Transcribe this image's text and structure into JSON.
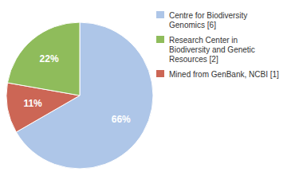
{
  "chart_data": {
    "type": "pie",
    "values": [
      66,
      11,
      22
    ],
    "value_labels": [
      "66%",
      "11%",
      "22%"
    ],
    "colors": [
      "#aec6e8",
      "#cc6655",
      "#8fbc5b"
    ],
    "data_labels": true,
    "legend": "right",
    "legend_entries": [
      {
        "name": "Centre for Biodiversity\nGenomics [6]",
        "color": "#aec6e8"
      },
      {
        "name": "Research Center in\nBiodiversity and Genetic\nResources [2]",
        "color": "#8fbc5b"
      },
      {
        "name": "Mined from GenBank, NCBI [1]",
        "color": "#cc6655"
      }
    ]
  }
}
